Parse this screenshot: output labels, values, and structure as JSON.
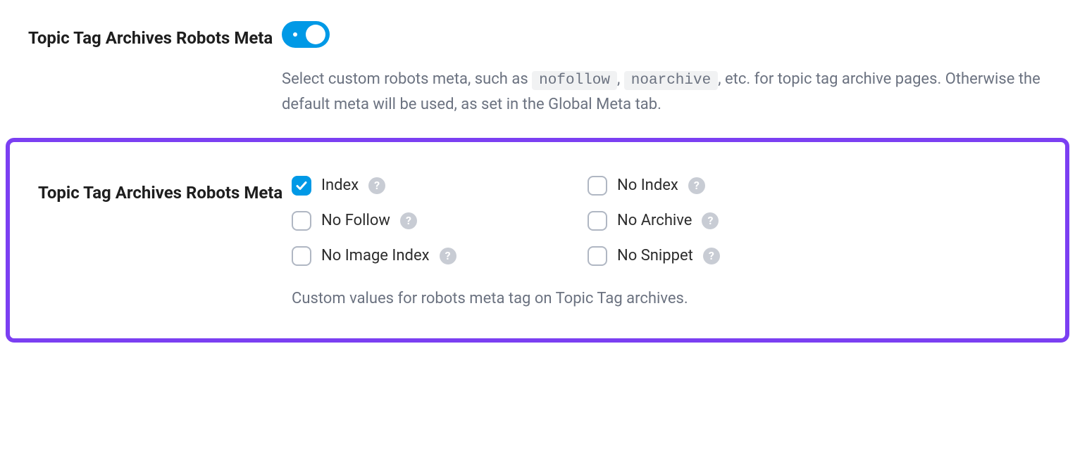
{
  "colors": {
    "accent": "#0099e6",
    "highlight_border": "#7b3ff2",
    "text_primary": "#1e1e1e",
    "text_secondary": "#6b7280",
    "code_bg": "#f1f2f3",
    "checkbox_border": "#b0b7c3",
    "help_bg": "#c8ccd4",
    "divider": "#e5e5e5",
    "background": "#ffffff"
  },
  "section1": {
    "label": "Topic Tag Archives Robots Meta",
    "toggle_on": true,
    "desc_parts": {
      "p1": "Select custom robots meta, such as ",
      "code1": "nofollow",
      "sep": ", ",
      "code2": "noarchive",
      "p2": ", etc. for topic tag archive pages. Otherwise the default meta will be used, as set in the Global Meta tab."
    }
  },
  "section2": {
    "label": "Topic Tag Archives Robots Meta",
    "options": [
      {
        "key": "index",
        "label": "Index",
        "checked": true
      },
      {
        "key": "no-index",
        "label": "No Index",
        "checked": false
      },
      {
        "key": "no-follow",
        "label": "No Follow",
        "checked": false
      },
      {
        "key": "no-archive",
        "label": "No Archive",
        "checked": false
      },
      {
        "key": "no-image-index",
        "label": "No Image Index",
        "checked": false
      },
      {
        "key": "no-snippet",
        "label": "No Snippet",
        "checked": false
      }
    ],
    "desc": "Custom values for robots meta tag on Topic Tag archives."
  }
}
